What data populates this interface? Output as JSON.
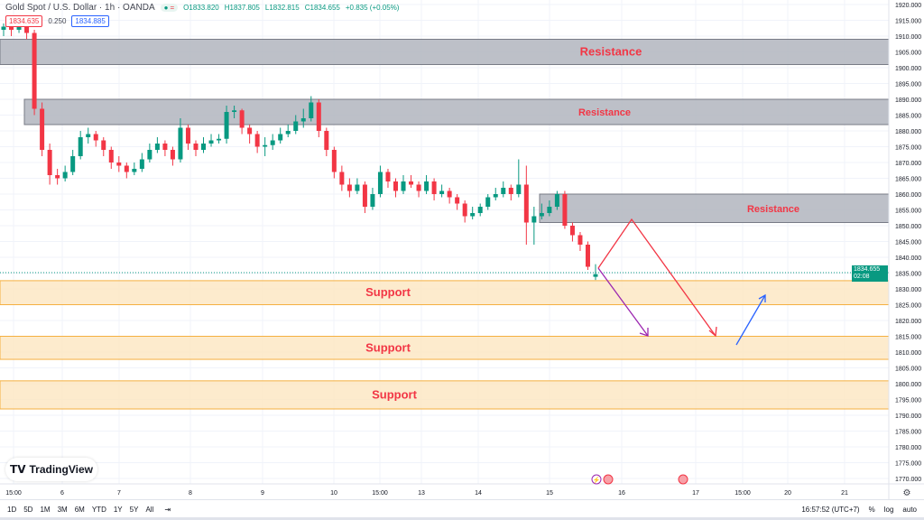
{
  "header": {
    "symbol": "Gold Spot / U.S. Dollar · 1h · OANDA",
    "open": "O1833.820",
    "high": "H1837.805",
    "low": "L1832.815",
    "close": "C1834.655",
    "change": "+0.835 (+0.05%)",
    "bid": "1834.635",
    "spread": "0.250",
    "ask": "1834.885"
  },
  "last_price": {
    "value": "1834.655",
    "countdown": "02:08"
  },
  "logo": "TradingView",
  "bottom": {
    "ranges": [
      "1D",
      "5D",
      "1M",
      "3M",
      "6M",
      "YTD",
      "1Y",
      "5Y",
      "All"
    ],
    "clock": "16:57:52 (UTC+7)",
    "percent": "%",
    "log": "log",
    "auto": "auto"
  },
  "colors": {
    "up": "#089981",
    "down": "#f23645",
    "resistance_fill": "#b2b5be",
    "support_fill": "#fde6c0",
    "support_border": "#f5b041",
    "label": "#f23645"
  },
  "chart_data": {
    "type": "candlestick",
    "ylim": [
      1770,
      1920
    ],
    "y_ticks": [
      "1920.000",
      "1915.000",
      "1910.000",
      "1905.000",
      "1900.000",
      "1895.000",
      "1890.000",
      "1885.000",
      "1880.000",
      "1875.000",
      "1870.000",
      "1865.000",
      "1860.000",
      "1855.000",
      "1850.000",
      "1845.000",
      "1840.000",
      "1835.000",
      "1830.000",
      "1825.000",
      "1820.000",
      "1815.000",
      "1810.000",
      "1805.000",
      "1800.000",
      "1795.000",
      "1790.000",
      "1785.000",
      "1780.000",
      "1775.000",
      "1770.000"
    ],
    "x_ticks": [
      "15:00",
      "6",
      "7",
      "8",
      "9",
      "10",
      "15:00",
      "13",
      "14",
      "15",
      "16",
      "17",
      "15:00",
      "20",
      "21"
    ],
    "zones": [
      {
        "kind": "resistance",
        "label": "Resistance",
        "from": 1901,
        "to": 1909
      },
      {
        "kind": "resistance",
        "label": "Resistance",
        "from": 1882,
        "to": 1890
      },
      {
        "kind": "resistance",
        "label": "Resistance",
        "from": 1851,
        "to": 1860
      },
      {
        "kind": "support",
        "label": "Support",
        "from": 1825,
        "to": 1832.6
      },
      {
        "kind": "support",
        "label": "Support",
        "from": 1807.7,
        "to": 1815
      },
      {
        "kind": "support",
        "label": "Support",
        "from": 1792,
        "to": 1800.9
      }
    ],
    "candles": [
      [
        1912,
        1914,
        1910,
        1913
      ],
      [
        1913,
        1915,
        1910,
        1912
      ],
      [
        1912,
        1916,
        1911,
        1914
      ],
      [
        1914,
        1916,
        1909,
        1911
      ],
      [
        1911,
        1912,
        1885,
        1887
      ],
      [
        1887,
        1889,
        1872,
        1874
      ],
      [
        1874,
        1876,
        1863,
        1866
      ],
      [
        1866,
        1868,
        1863,
        1865
      ],
      [
        1865,
        1869,
        1864,
        1867
      ],
      [
        1867,
        1874,
        1866,
        1872
      ],
      [
        1872,
        1880,
        1871,
        1878
      ],
      [
        1878,
        1881,
        1876,
        1879
      ],
      [
        1879,
        1880,
        1875,
        1877
      ],
      [
        1877,
        1878,
        1872,
        1874
      ],
      [
        1874,
        1875,
        1868,
        1870
      ],
      [
        1870,
        1872,
        1867,
        1869
      ],
      [
        1869,
        1870,
        1865,
        1867
      ],
      [
        1867,
        1870,
        1866,
        1868
      ],
      [
        1868,
        1873,
        1867,
        1871
      ],
      [
        1871,
        1876,
        1870,
        1874
      ],
      [
        1874,
        1878,
        1873,
        1876
      ],
      [
        1876,
        1877,
        1872,
        1874
      ],
      [
        1874,
        1875,
        1869,
        1871
      ],
      [
        1871,
        1884,
        1870,
        1881
      ],
      [
        1881,
        1882,
        1874,
        1876
      ],
      [
        1876,
        1877,
        1872,
        1874
      ],
      [
        1874,
        1878,
        1873,
        1876
      ],
      [
        1876,
        1879,
        1875,
        1877
      ],
      [
        1877,
        1879,
        1876,
        1877.5
      ],
      [
        1877.5,
        1888,
        1876,
        1886
      ],
      [
        1886,
        1888,
        1884,
        1886.5
      ],
      [
        1886.5,
        1887,
        1879,
        1881
      ],
      [
        1881,
        1882,
        1876,
        1879
      ],
      [
        1879,
        1880,
        1873,
        1875
      ],
      [
        1875,
        1878,
        1872,
        1875.5
      ],
      [
        1875.5,
        1879,
        1874,
        1877
      ],
      [
        1877,
        1881,
        1876,
        1879
      ],
      [
        1879,
        1882,
        1878,
        1880
      ],
      [
        1880,
        1885,
        1879,
        1883
      ],
      [
        1883,
        1887,
        1881,
        1884
      ],
      [
        1884,
        1891,
        1883,
        1889
      ],
      [
        1889,
        1890,
        1878,
        1880
      ],
      [
        1880,
        1881,
        1872,
        1874
      ],
      [
        1874,
        1875,
        1865,
        1867
      ],
      [
        1867,
        1869,
        1861,
        1863
      ],
      [
        1863,
        1865,
        1859,
        1861
      ],
      [
        1861,
        1865,
        1860,
        1863
      ],
      [
        1863,
        1864,
        1854,
        1856
      ],
      [
        1856,
        1862,
        1855,
        1860
      ],
      [
        1860,
        1869,
        1859,
        1867
      ],
      [
        1867,
        1868,
        1862,
        1864
      ],
      [
        1864,
        1865,
        1859,
        1861
      ],
      [
        1861,
        1866,
        1860,
        1864
      ],
      [
        1864,
        1866,
        1862,
        1863
      ],
      [
        1863,
        1864,
        1859,
        1861
      ],
      [
        1861,
        1866,
        1860,
        1864
      ],
      [
        1864,
        1865,
        1858,
        1860
      ],
      [
        1860,
        1863,
        1859,
        1861
      ],
      [
        1861,
        1862,
        1857,
        1859
      ],
      [
        1859,
        1860,
        1855,
        1857
      ],
      [
        1857,
        1858,
        1851,
        1853
      ],
      [
        1853,
        1856,
        1852,
        1854
      ],
      [
        1854,
        1857,
        1853,
        1856
      ],
      [
        1856,
        1860,
        1855,
        1859
      ],
      [
        1859,
        1862,
        1858,
        1860
      ],
      [
        1860,
        1864,
        1859,
        1862
      ],
      [
        1862,
        1863,
        1858,
        1860
      ],
      [
        1860,
        1871,
        1859,
        1863
      ],
      [
        1863,
        1869,
        1844,
        1851
      ],
      [
        1851,
        1856,
        1844,
        1853
      ],
      [
        1853,
        1857,
        1852,
        1854
      ],
      [
        1854,
        1858,
        1853,
        1856
      ],
      [
        1856,
        1861,
        1855,
        1860
      ],
      [
        1860,
        1861,
        1849,
        1850
      ],
      [
        1850,
        1851,
        1845,
        1847
      ],
      [
        1847,
        1848,
        1842,
        1844
      ],
      [
        1844,
        1845,
        1836,
        1837
      ],
      [
        1833.82,
        1837.805,
        1832.815,
        1834.655
      ]
    ]
  }
}
